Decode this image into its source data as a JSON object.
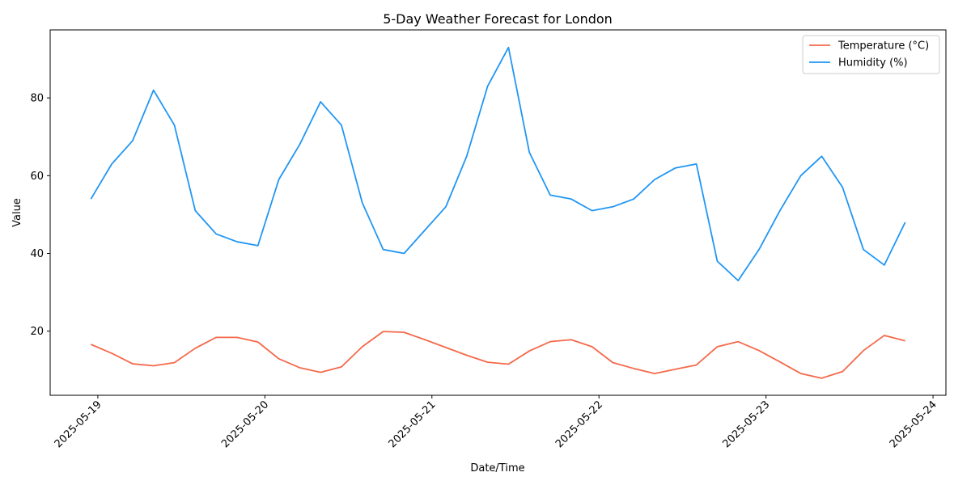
{
  "chart_data": {
    "type": "line",
    "title": "5-Day Weather Forecast for London",
    "xlabel": "Date/Time",
    "ylabel": "Value",
    "x_start": "2025-05-18T23:00",
    "x_step_hours": 3,
    "x_ticks": [
      "2025-05-19",
      "2025-05-20",
      "2025-05-21",
      "2025-05-22",
      "2025-05-23",
      "2025-05-24"
    ],
    "y_ticks": [
      20,
      40,
      60,
      80
    ],
    "ylim": [
      3.5,
      97.5
    ],
    "legend_position": "top-right",
    "grid": false,
    "series": [
      {
        "name": "Temperature (°C)",
        "color": "#f4694a",
        "values": [
          16.6,
          14.3,
          11.6,
          11.1,
          11.9,
          15.6,
          18.4,
          18.4,
          17.2,
          12.9,
          10.6,
          9.4,
          10.8,
          16.0,
          19.9,
          19.7,
          17.8,
          15.8,
          13.8,
          12.0,
          11.5,
          14.9,
          17.3,
          17.8,
          16.0,
          11.9,
          10.4,
          9.1,
          10.2,
          11.3,
          16.0,
          17.3,
          15.0,
          12.1,
          9.1,
          7.9,
          9.6,
          15.0,
          18.9,
          17.5
        ]
      },
      {
        "name": "Humidity (%)",
        "color": "#2196f3",
        "values": [
          54,
          63,
          69,
          82,
          73,
          51,
          45,
          43,
          42,
          59,
          68,
          79,
          73,
          53,
          41,
          40,
          46,
          52,
          65,
          83,
          93,
          66,
          55,
          54,
          51,
          52,
          54,
          59,
          62,
          63,
          38,
          33,
          41,
          51,
          60,
          65,
          57,
          41,
          37,
          48
        ]
      }
    ]
  }
}
